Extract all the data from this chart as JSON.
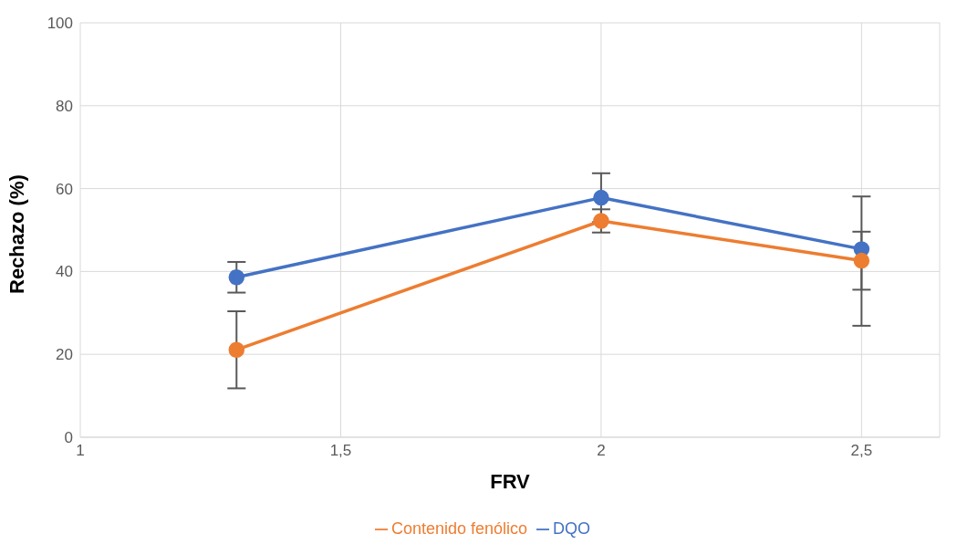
{
  "chart_data": {
    "type": "line",
    "xlabel": "FRV",
    "ylabel": "Rechazo (%)",
    "x": [
      1.3,
      2,
      2.5
    ],
    "series": [
      {
        "name": "DQO",
        "color": "#4472c4",
        "values": [
          38.6,
          57.8,
          45.4
        ],
        "errors": [
          3.7,
          5.9,
          [
            26.9,
            58.1
          ]
        ]
      },
      {
        "name": "Contenido fenólico",
        "color": "#ed7d31",
        "values": [
          21.1,
          52.2,
          42.6
        ],
        "errors": [
          9.3,
          2.8,
          7
        ]
      }
    ],
    "xlim": [
      1,
      2.65
    ],
    "xticks": [
      1,
      {
        "value": 1.5,
        "label": "1,5"
      },
      2,
      {
        "value": 2.5,
        "label": "2,5"
      }
    ],
    "ylim": [
      0,
      100
    ],
    "yticks": [
      0,
      20,
      40,
      60,
      80,
      100
    ],
    "grid": true,
    "legend": "bottom",
    "marker": "circle",
    "line_style": "solid"
  }
}
